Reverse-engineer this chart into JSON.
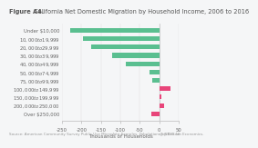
{
  "title_bold": "Figure A4.",
  "title_regular": " California Net Domestic Migration by Household Income, 2006 to 2016",
  "categories": [
    "Under $10,000",
    "$10,000 to $19,999",
    "$20,000 to $29,999",
    "$30,000 to $39,999",
    "$40,000 to $49,999",
    "$50,000 to $74,999",
    "$75,000 to $99,999",
    "$100,000 to $149,999",
    "$150,000 to $199,999",
    "$200,000 to $250,000",
    "Over $250,000"
  ],
  "values": [
    -230,
    -195,
    -175,
    -120,
    -85,
    -25,
    -18,
    28,
    5,
    12,
    -20
  ],
  "bar_colors": [
    "#5abf90",
    "#5abf90",
    "#5abf90",
    "#5abf90",
    "#5abf90",
    "#5abf90",
    "#5abf90",
    "#e8457a",
    "#e8457a",
    "#e8457a",
    "#e8457a"
  ],
  "xlabel": "Thousands of Households",
  "xlim": [
    -250,
    50
  ],
  "xticks": [
    -250,
    -200,
    -150,
    -100,
    -50,
    0,
    50
  ],
  "footnote": "Source: American Community Survey Public Use Microdata Samples. Tabulations by Beacon Economics.",
  "logo": "@ NEXT 16",
  "background_color": "#f5f6f7",
  "title_color": "#555555",
  "bar_height": 0.55,
  "tick_fontsize": 3.8,
  "label_fontsize": 4.0,
  "title_fontsize": 4.8,
  "footnote_fontsize": 3.0
}
